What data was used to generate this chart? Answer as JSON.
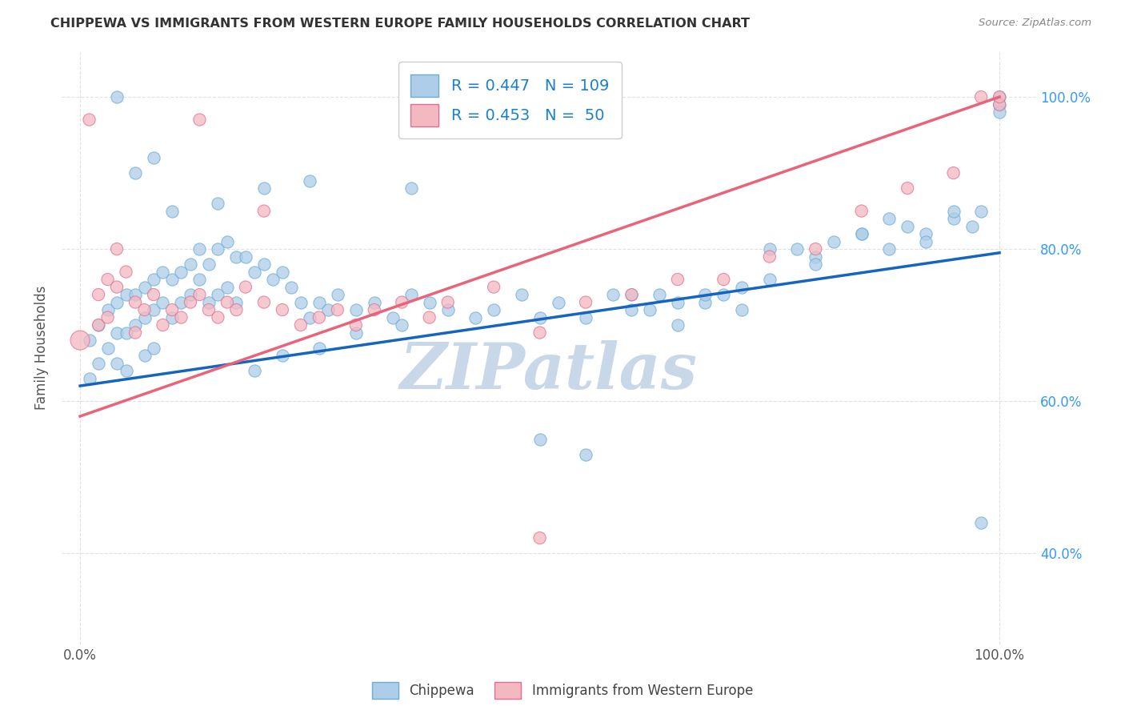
{
  "title": "CHIPPEWA VS IMMIGRANTS FROM WESTERN EUROPE FAMILY HOUSEHOLDS CORRELATION CHART",
  "source": "Source: ZipAtlas.com",
  "ylabel": "Family Households",
  "ytick_values": [
    0.4,
    0.6,
    0.8,
    1.0
  ],
  "xlim": [
    -0.02,
    1.04
  ],
  "ylim": [
    0.28,
    1.06
  ],
  "blue_scatter": {
    "color": "#aecde8",
    "edge_color": "#6aadd5",
    "x": [
      0.01,
      0.01,
      0.02,
      0.02,
      0.03,
      0.03,
      0.04,
      0.04,
      0.04,
      0.05,
      0.05,
      0.05,
      0.06,
      0.06,
      0.07,
      0.07,
      0.07,
      0.08,
      0.08,
      0.08,
      0.09,
      0.09,
      0.1,
      0.1,
      0.11,
      0.11,
      0.12,
      0.12,
      0.13,
      0.13,
      0.14,
      0.14,
      0.15,
      0.15,
      0.16,
      0.16,
      0.17,
      0.17,
      0.18,
      0.19,
      0.2,
      0.21,
      0.22,
      0.23,
      0.24,
      0.25,
      0.26,
      0.27,
      0.28,
      0.3,
      0.32,
      0.34,
      0.36,
      0.38,
      0.4,
      0.43,
      0.45,
      0.48,
      0.5,
      0.52,
      0.55,
      0.58,
      0.6,
      0.63,
      0.65,
      0.68,
      0.7,
      0.72,
      0.75,
      0.78,
      0.8,
      0.82,
      0.85,
      0.88,
      0.9,
      0.92,
      0.95,
      0.97,
      0.98,
      1.0,
      1.0,
      1.0,
      0.36,
      0.5,
      0.55,
      0.6,
      0.62,
      0.65,
      0.68,
      0.72,
      0.75,
      0.8,
      0.85,
      0.88,
      0.92,
      0.95,
      0.98,
      0.15,
      0.2,
      0.25,
      0.1,
      0.08,
      0.06,
      0.04,
      0.22,
      0.19,
      0.26,
      0.3,
      0.35
    ],
    "y": [
      0.68,
      0.63,
      0.7,
      0.65,
      0.72,
      0.67,
      0.73,
      0.69,
      0.65,
      0.74,
      0.69,
      0.64,
      0.74,
      0.7,
      0.75,
      0.71,
      0.66,
      0.76,
      0.72,
      0.67,
      0.77,
      0.73,
      0.76,
      0.71,
      0.77,
      0.73,
      0.78,
      0.74,
      0.8,
      0.76,
      0.78,
      0.73,
      0.8,
      0.74,
      0.81,
      0.75,
      0.79,
      0.73,
      0.79,
      0.77,
      0.78,
      0.76,
      0.77,
      0.75,
      0.73,
      0.71,
      0.73,
      0.72,
      0.74,
      0.72,
      0.73,
      0.71,
      0.74,
      0.73,
      0.72,
      0.71,
      0.72,
      0.74,
      0.71,
      0.73,
      0.71,
      0.74,
      0.72,
      0.74,
      0.7,
      0.73,
      0.74,
      0.72,
      0.8,
      0.8,
      0.79,
      0.81,
      0.82,
      0.8,
      0.83,
      0.82,
      0.84,
      0.83,
      0.85,
      1.0,
      0.99,
      0.98,
      0.88,
      0.55,
      0.53,
      0.74,
      0.72,
      0.73,
      0.74,
      0.75,
      0.76,
      0.78,
      0.82,
      0.84,
      0.81,
      0.85,
      0.44,
      0.86,
      0.88,
      0.89,
      0.85,
      0.92,
      0.9,
      1.0,
      0.66,
      0.64,
      0.67,
      0.69,
      0.7
    ]
  },
  "pink_scatter": {
    "color": "#f4b8c1",
    "edge_color": "#e07090",
    "x": [
      0.0,
      0.01,
      0.02,
      0.02,
      0.03,
      0.03,
      0.04,
      0.04,
      0.05,
      0.06,
      0.06,
      0.07,
      0.08,
      0.09,
      0.1,
      0.11,
      0.12,
      0.13,
      0.14,
      0.15,
      0.16,
      0.17,
      0.18,
      0.2,
      0.22,
      0.24,
      0.26,
      0.28,
      0.3,
      0.32,
      0.35,
      0.38,
      0.4,
      0.45,
      0.5,
      0.55,
      0.6,
      0.65,
      0.7,
      0.75,
      0.8,
      0.85,
      0.9,
      0.95,
      0.98,
      1.0,
      1.0,
      0.2,
      0.13,
      0.5
    ],
    "y": [
      0.68,
      0.97,
      0.74,
      0.7,
      0.76,
      0.71,
      0.8,
      0.75,
      0.77,
      0.73,
      0.69,
      0.72,
      0.74,
      0.7,
      0.72,
      0.71,
      0.73,
      0.74,
      0.72,
      0.71,
      0.73,
      0.72,
      0.75,
      0.73,
      0.72,
      0.7,
      0.71,
      0.72,
      0.7,
      0.72,
      0.73,
      0.71,
      0.73,
      0.75,
      0.69,
      0.73,
      0.74,
      0.76,
      0.76,
      0.79,
      0.8,
      0.85,
      0.88,
      0.9,
      1.0,
      0.99,
      1.0,
      0.85,
      0.97,
      0.42
    ]
  },
  "blue_line": {
    "color": "#1565c0",
    "x_start": 0.0,
    "x_end": 1.0,
    "y_start": 0.62,
    "y_end": 0.795
  },
  "pink_line": {
    "color": "#e8647a",
    "x_start": 0.0,
    "x_end": 1.0,
    "y_start": 0.58,
    "y_end": 1.0
  },
  "watermark_text": "ZIPatlas",
  "watermark_color": "#c8d8e8",
  "background_color": "#ffffff",
  "grid_color": "#e0e0e0",
  "title_color": "#333333",
  "source_color": "#888888",
  "ylabel_color": "#555555",
  "tick_color": "#555555",
  "right_tick_color": "#3399ff",
  "legend_label_color": "#1a7fcc"
}
